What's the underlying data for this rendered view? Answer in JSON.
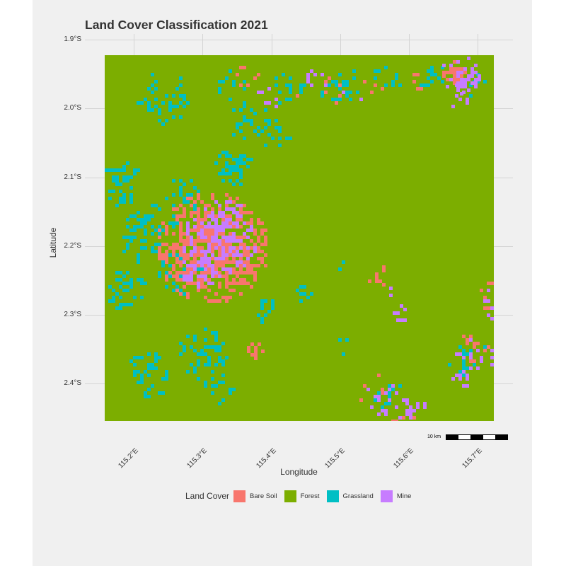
{
  "title": "Land Cover Classification 2021",
  "axes": {
    "x_label": "Longitude",
    "y_label": "Latitude",
    "x_ticks": [
      "115.2°E",
      "115.3°E",
      "115.4°E",
      "115.5°E",
      "115.6°E",
      "115.7°E"
    ],
    "y_ticks": [
      "1.9°S",
      "2.0°S",
      "2.1°S",
      "2.2°S",
      "2.3°S",
      "2.4°S"
    ]
  },
  "legend": {
    "title": "Land Cover",
    "items": [
      {
        "label": "Bare Soil",
        "color": "#f8766d"
      },
      {
        "label": "Forest",
        "color": "#7cae00"
      },
      {
        "label": "Grassland",
        "color": "#00bfc4"
      },
      {
        "label": "Mine",
        "color": "#c77cff"
      }
    ]
  },
  "scale_bar": {
    "label": "10 km"
  },
  "colors": {
    "background": "#f0f0f0",
    "bare_soil": "#f8766d",
    "forest": "#7cae00",
    "grassland": "#00bfc4",
    "mine": "#c77cff"
  }
}
